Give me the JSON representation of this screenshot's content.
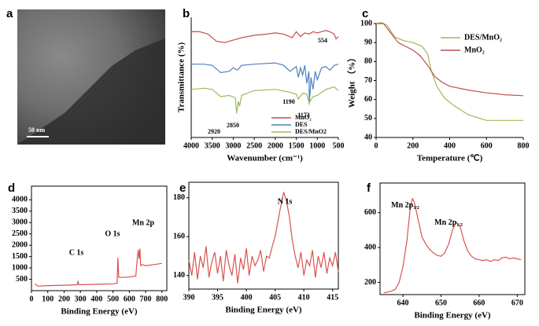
{
  "chart_data": [
    {
      "type": "image",
      "panel": "a",
      "scale_label": "50 nm"
    },
    {
      "type": "line",
      "panel": "b",
      "xlabel": "Wavenumber (cm⁻¹)",
      "ylabel": "Transmittance (%)",
      "xlim": [
        4000,
        500
      ],
      "ylim": [
        0,
        100
      ],
      "xticks": [
        4000,
        3500,
        3000,
        2500,
        2000,
        1500,
        1000,
        500
      ],
      "legend": "lower right",
      "frame": false,
      "series": [
        {
          "name": "MnO₂",
          "color": "#c0504d",
          "x": [
            4000,
            3800,
            3600,
            3400,
            3200,
            3000,
            2800,
            2500,
            2200,
            2000,
            1800,
            1600,
            1500,
            1400,
            1300,
            1200,
            1100,
            1000,
            800,
            700,
            600,
            554,
            500
          ],
          "values": [
            88,
            88,
            86,
            80,
            79,
            81,
            83,
            85,
            86,
            87,
            86,
            83,
            88,
            84,
            87,
            86,
            88,
            87,
            89,
            88,
            86,
            82,
            84
          ]
        },
        {
          "name": "DES",
          "color": "#4f81bd",
          "x": [
            4000,
            3700,
            3500,
            3300,
            3100,
            3000,
            2900,
            2800,
            2500,
            2000,
            1800,
            1650,
            1500,
            1450,
            1400,
            1350,
            1300,
            1250,
            1200,
            1190,
            1173,
            1150,
            1100,
            1050,
            1000,
            900,
            800,
            700,
            600,
            500
          ],
          "values": [
            61,
            61,
            60,
            54,
            55,
            58,
            56,
            60,
            61,
            62,
            60,
            55,
            59,
            50,
            58,
            52,
            60,
            45,
            55,
            30,
            36,
            50,
            40,
            55,
            48,
            58,
            59,
            56,
            60,
            61
          ]
        },
        {
          "name": "DES/MnO2",
          "color": "#9bbb59",
          "x": [
            4000,
            3700,
            3500,
            3300,
            3100,
            2950,
            2920,
            2880,
            2850,
            2800,
            2500,
            2000,
            1700,
            1500,
            1450,
            1350,
            1250,
            1190,
            1173,
            1100,
            1000,
            800,
            600,
            500
          ],
          "values": [
            40,
            41,
            40,
            34,
            35,
            33,
            20,
            30,
            26,
            35,
            39,
            40,
            38,
            36,
            32,
            37,
            36,
            28,
            30,
            34,
            35,
            40,
            42,
            39
          ]
        }
      ],
      "annotations": [
        554,
        1190,
        1173,
        2920,
        2850
      ]
    },
    {
      "type": "line",
      "panel": "c",
      "xlabel": "Temperature (℃)",
      "ylabel": "Weight （%）",
      "xlim": [
        0,
        800
      ],
      "ylim": [
        40,
        100
      ],
      "xticks": [
        0,
        200,
        400,
        600,
        800
      ],
      "yticks": [
        40,
        50,
        60,
        70,
        80,
        90,
        100
      ],
      "legend": "upper right",
      "frame": false,
      "series": [
        {
          "name": "DES/MnO₂",
          "color": "#9bbb59",
          "x": [
            0,
            30,
            60,
            100,
            150,
            200,
            250,
            280,
            300,
            330,
            370,
            420,
            500,
            600,
            700,
            800
          ],
          "values": [
            100,
            100.5,
            99,
            93,
            91,
            90,
            88,
            84,
            75,
            67,
            61,
            57,
            52,
            49,
            49,
            49
          ]
        },
        {
          "name": "MnO₂",
          "color": "#c0504d",
          "x": [
            0,
            40,
            80,
            120,
            160,
            200,
            240,
            280,
            320,
            360,
            400,
            500,
            600,
            700,
            800
          ],
          "values": [
            100,
            100,
            95,
            90,
            88,
            86,
            83,
            78,
            72,
            69,
            67,
            65,
            63.5,
            62.5,
            62
          ]
        }
      ]
    },
    {
      "type": "line",
      "panel": "d",
      "xlabel": "Binding Energy (eV)",
      "xlim": [
        0,
        830
      ],
      "ylim": [
        0,
        4600
      ],
      "xticks": [
        0,
        100,
        200,
        300,
        400,
        500,
        600,
        700,
        800
      ],
      "yticks": [
        500,
        1000,
        1500,
        2000,
        2500,
        3000,
        3500,
        4000
      ],
      "frame": true,
      "series": [
        {
          "color": "#d9534f",
          "x": [
            20,
            40,
            100,
            200,
            280,
            285,
            290,
            400,
            500,
            525,
            530,
            535,
            540,
            600,
            640,
            650,
            655,
            660,
            665,
            670,
            680,
            700,
            750,
            800
          ],
          "values": [
            300,
            200,
            220,
            240,
            260,
            430,
            260,
            280,
            300,
            320,
            1450,
            600,
            580,
            600,
            650,
            1500,
            1800,
            1400,
            1850,
            1100,
            1150,
            1100,
            1150,
            1200
          ]
        }
      ],
      "annotations": [
        "C 1s",
        "O 1s",
        "Mn 2p"
      ]
    },
    {
      "type": "line",
      "panel": "e",
      "xlabel": "Binding Energy (eV)",
      "xlim": [
        390,
        416
      ],
      "ylim": [
        133,
        188
      ],
      "xticks": [
        390,
        395,
        400,
        405,
        410,
        415
      ],
      "yticks": [
        140,
        160,
        180
      ],
      "frame": true,
      "series": [
        {
          "color": "#d9534f",
          "x": [
            390,
            390.5,
            391,
            391.5,
            392,
            392.5,
            393,
            393.5,
            394,
            394.5,
            395,
            395.5,
            396,
            396.5,
            397,
            397.5,
            398,
            398.5,
            399,
            399.5,
            400,
            400.5,
            401,
            401.5,
            402,
            402.5,
            403,
            403.5,
            404,
            404.5,
            405,
            405.5,
            406,
            406.5,
            407,
            407.5,
            408,
            408.5,
            409,
            409.5,
            410,
            410.5,
            411,
            411.5,
            412,
            412.5,
            413,
            413.5,
            414,
            414.5,
            415,
            415.5,
            416
          ],
          "values": [
            148,
            140,
            152,
            138,
            150,
            144,
            155,
            139,
            147,
            152,
            141,
            150,
            137,
            153,
            145,
            140,
            151,
            136,
            149,
            143,
            154,
            140,
            150,
            145,
            148,
            153,
            142,
            150,
            149,
            155,
            160,
            168,
            176,
            183,
            178,
            170,
            158,
            150,
            144,
            152,
            140,
            148,
            145,
            153,
            139,
            150,
            144,
            152,
            141,
            149,
            145,
            152,
            142
          ]
        }
      ],
      "annotations": [
        "N 1s"
      ]
    },
    {
      "type": "line",
      "panel": "f",
      "xlabel": "Binding Energy (eV)",
      "xlim": [
        634,
        672
      ],
      "ylim": [
        130,
        770
      ],
      "xticks": [
        640,
        650,
        660,
        670
      ],
      "yticks": [
        200,
        400,
        600
      ],
      "frame": true,
      "series": [
        {
          "color": "#d9534f",
          "x": [
            635,
            636,
            637,
            638,
            639,
            640,
            641,
            642,
            642.5,
            643,
            644,
            645,
            646,
            647,
            648,
            649,
            650,
            651,
            652,
            653,
            654,
            655,
            656,
            657,
            658,
            659,
            660,
            661,
            662,
            663,
            664,
            665,
            666,
            667,
            668,
            669,
            670,
            671
          ],
          "values": [
            140,
            145,
            150,
            160,
            200,
            290,
            430,
            640,
            680,
            660,
            560,
            460,
            420,
            390,
            370,
            355,
            350,
            370,
            420,
            500,
            545,
            520,
            440,
            380,
            350,
            335,
            330,
            325,
            330,
            320,
            330,
            325,
            340,
            345,
            335,
            340,
            335,
            330
          ]
        }
      ],
      "annotations": [
        {
          "main": "Mn 2p",
          "sub": "3/2"
        },
        {
          "main": "Mn 2p",
          "sub": "1/2"
        }
      ]
    }
  ]
}
